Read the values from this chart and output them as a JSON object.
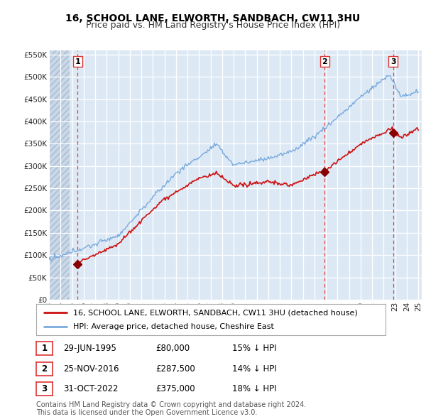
{
  "title": "16, SCHOOL LANE, ELWORTH, SANDBACH, CW11 3HU",
  "subtitle": "Price paid vs. HM Land Registry's House Price Index (HPI)",
  "ylim": [
    0,
    560000
  ],
  "yticks": [
    0,
    50000,
    100000,
    150000,
    200000,
    250000,
    300000,
    350000,
    400000,
    450000,
    500000,
    550000
  ],
  "ytick_labels": [
    "£0",
    "£50K",
    "£100K",
    "£150K",
    "£200K",
    "£250K",
    "£300K",
    "£350K",
    "£400K",
    "£450K",
    "£500K",
    "£550K"
  ],
  "background_color": "#ffffff",
  "plot_bg_color": "#dce9f5",
  "grid_color": "#ffffff",
  "hatch_color": "#c8d8e8",
  "hpi_color": "#7aaadd",
  "price_color": "#cc1111",
  "sale_marker_color": "#880000",
  "vline_color": "#dd3333",
  "legend_label_price": "16, SCHOOL LANE, ELWORTH, SANDBACH, CW11 3HU (detached house)",
  "legend_label_hpi": "HPI: Average price, detached house, Cheshire East",
  "sales": [
    {
      "label": "1",
      "date_num": 1995.49,
      "price": 80000,
      "pct": "15%",
      "date_str": "29-JUN-1995"
    },
    {
      "label": "2",
      "date_num": 2016.9,
      "price": 287500,
      "pct": "14%",
      "date_str": "25-NOV-2016"
    },
    {
      "label": "3",
      "date_num": 2022.83,
      "price": 375000,
      "pct": "18%",
      "date_str": "31-OCT-2022"
    }
  ],
  "footer": "Contains HM Land Registry data © Crown copyright and database right 2024.\nThis data is licensed under the Open Government Licence v3.0.",
  "title_fontsize": 10,
  "subtitle_fontsize": 9,
  "tick_fontsize": 7.5,
  "legend_fontsize": 8,
  "table_fontsize": 8.5,
  "footer_fontsize": 7
}
